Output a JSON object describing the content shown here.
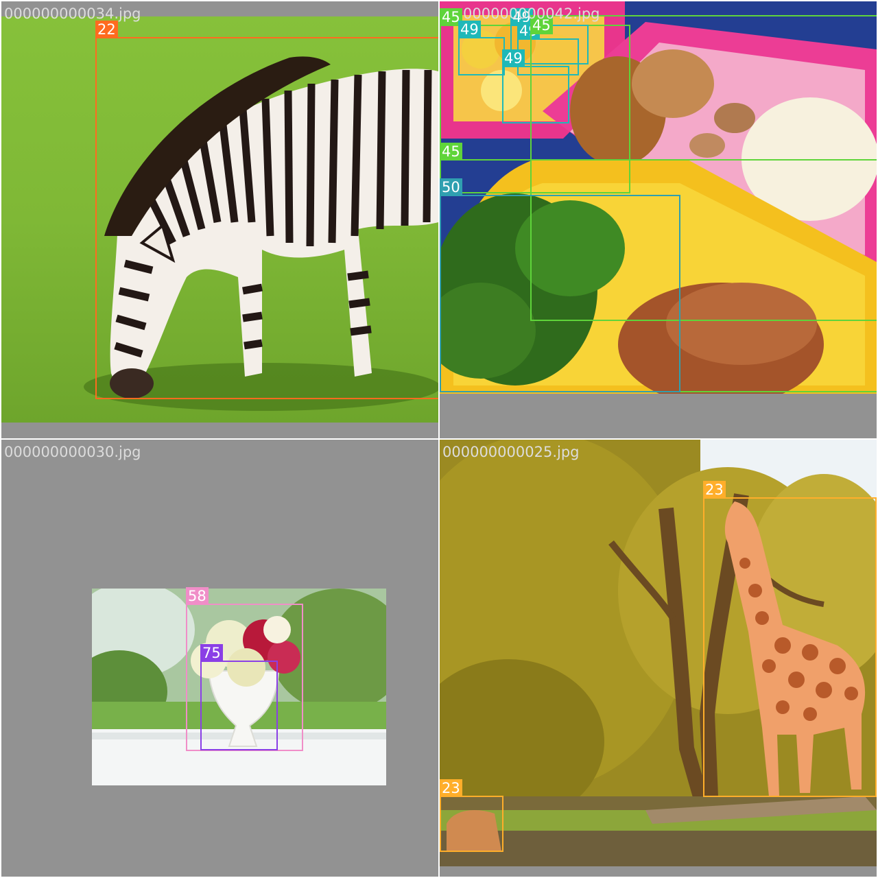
{
  "tiles": [
    {
      "filename": "000000000034.jpg",
      "boxes": [
        {
          "label": "22",
          "color": "#ff6b1f"
        }
      ]
    },
    {
      "filename": "000000000042.jpg",
      "boxes": [
        {
          "label": "45",
          "color": "#5fd43a"
        },
        {
          "label": "49",
          "color": "#1fb8b8"
        },
        {
          "label": "49",
          "color": "#1fb8b8"
        },
        {
          "label": "49",
          "color": "#1fb8b8"
        },
        {
          "label": "49",
          "color": "#1fb8b8"
        },
        {
          "label": "45",
          "color": "#5fd43a"
        },
        {
          "label": "45",
          "color": "#5fd43a"
        },
        {
          "label": "50",
          "color": "#2f9fb0"
        }
      ]
    },
    {
      "filename": "000000000030.jpg",
      "boxes": [
        {
          "label": "58",
          "color": "#f08ec8"
        },
        {
          "label": "75",
          "color": "#8a3fe6"
        }
      ]
    },
    {
      "filename": "000000000025.jpg",
      "boxes": [
        {
          "label": "23",
          "color": "#ffae2a"
        },
        {
          "label": "23",
          "color": "#ffae2a"
        }
      ]
    }
  ]
}
